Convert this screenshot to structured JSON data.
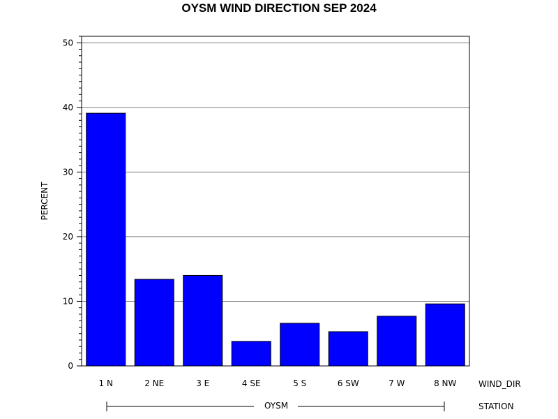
{
  "chart_data": {
    "type": "bar",
    "title": "OYSM WIND DIRECTION SEP 2024",
    "ylabel": "PERCENT",
    "xlabel": "WIND_DIR",
    "group_label": "STATION",
    "group_name": "OYSM",
    "categories": [
      "1 N",
      "2 NE",
      "3 E",
      "4 SE",
      "5 S",
      "6 SW",
      "7 W",
      "8 NW"
    ],
    "values": [
      39.1,
      13.4,
      14.0,
      3.8,
      6.6,
      5.3,
      7.7,
      9.6
    ],
    "ylim": [
      0,
      51
    ],
    "yticks": [
      0,
      10,
      20,
      30,
      40,
      50
    ],
    "grid": true,
    "bar_color": "#0000FF"
  }
}
